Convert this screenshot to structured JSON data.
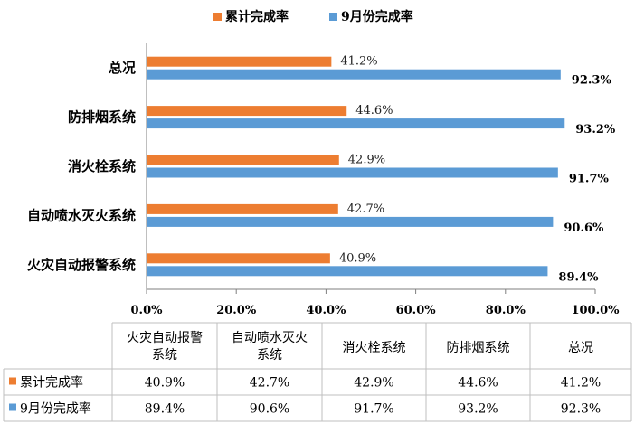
{
  "chart_data": {
    "type": "bar",
    "orientation": "horizontal",
    "categories": [
      "总况",
      "防排烟系统",
      "消火栓系统",
      "自动喷水灭火系统",
      "火灾自动报警系统"
    ],
    "series": [
      {
        "name": "累计完成率",
        "color": "#ED7D31",
        "values": [
          41.2,
          44.6,
          42.9,
          42.7,
          40.9
        ],
        "labels": [
          "41.2%",
          "44.6%",
          "42.9%",
          "42.7%",
          "40.9%"
        ]
      },
      {
        "name": "9月份完成率",
        "color": "#5B9BD5",
        "values": [
          92.3,
          93.2,
          91.7,
          90.6,
          89.4
        ],
        "labels": [
          "92.3%",
          "93.2%",
          "91.7%",
          "90.6%",
          "89.4%"
        ]
      }
    ],
    "xlim": [
      0,
      100
    ],
    "xticks": [
      0,
      20,
      40,
      60,
      80,
      100
    ],
    "xtick_labels": [
      "0.0%",
      "20.0%",
      "40.0%",
      "60.0%",
      "80.0%",
      "100.0%"
    ],
    "legend_position": "top",
    "grid": false,
    "data_table": {
      "columns": [
        [
          "火灾自动报警",
          "系统"
        ],
        [
          "自动喷水灭火",
          "系统"
        ],
        [
          "消火栓系统"
        ],
        [
          "防排烟系统"
        ],
        [
          "总况"
        ]
      ],
      "rows": [
        {
          "name": "累计完成率",
          "color": "#ED7D31",
          "values": [
            "40.9%",
            "42.7%",
            "42.9%",
            "44.6%",
            "41.2%"
          ]
        },
        {
          "name": "9月份完成率",
          "color": "#5B9BD5",
          "values": [
            "89.4%",
            "90.6%",
            "91.7%",
            "93.2%",
            "92.3%"
          ]
        }
      ]
    }
  }
}
